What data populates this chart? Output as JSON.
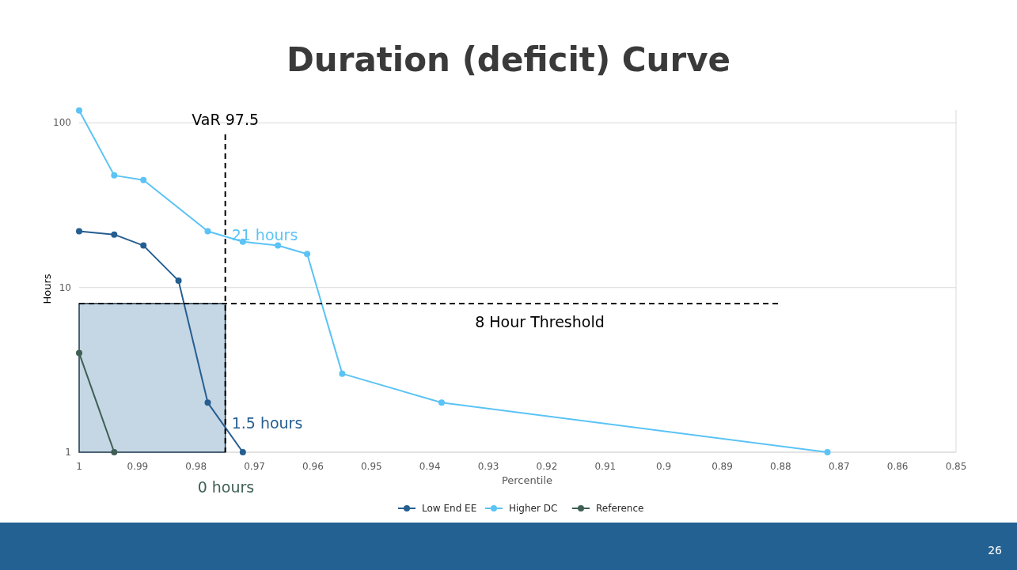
{
  "chart_data": {
    "type": "line",
    "title": "Duration (deficit) Curve",
    "xlabel": "Percentile",
    "ylabel": "Hours",
    "xlim": [
      1,
      0.85
    ],
    "xticks": [
      1,
      0.99,
      0.98,
      0.97,
      0.96,
      0.95,
      0.94,
      0.93,
      0.92,
      0.91,
      0.9,
      0.89,
      0.88,
      0.87,
      0.86,
      0.85
    ],
    "ylim": [
      1,
      120
    ],
    "yticks": [
      1,
      10,
      100
    ],
    "log": "y",
    "grid": "y",
    "marker": "circle",
    "legend": "bottom",
    "series": [
      {
        "name": "Low End EE",
        "color": "#255e91",
        "x": [
          1,
          0.994,
          0.989,
          0.983,
          0.978,
          0.972
        ],
        "values": [
          22,
          21,
          18,
          11,
          2,
          1
        ]
      },
      {
        "name": "Higher DC",
        "color": "#5bc3f5",
        "x": [
          1,
          0.994,
          0.989,
          0.978,
          0.972,
          0.966,
          0.961,
          0.955,
          0.938,
          0.872
        ],
        "values": [
          119,
          48,
          45,
          22,
          19,
          18,
          16,
          3,
          2,
          1
        ]
      },
      {
        "name": "Reference",
        "color": "#3f5f55",
        "x": [
          1,
          0.994
        ],
        "values": [
          4,
          1
        ]
      }
    ],
    "ref_lines": [
      {
        "axis": "x",
        "value": 0.975,
        "label": "VaR 97.5",
        "color": "#000000",
        "line_style": "dashed"
      },
      {
        "axis": "y",
        "value": 8,
        "label": "8 Hour Threshold",
        "color": "#000000",
        "line_style": "dashed"
      }
    ],
    "bands": [
      {
        "axis": "x",
        "from": 1,
        "to": 0.975,
        "color": "#c5d6e4"
      }
    ],
    "annotations": [
      {
        "text": "1.5 hours",
        "x": 0.975,
        "y": 1.5
      },
      {
        "text": "21 hours",
        "x": 0.975,
        "y": 21
      },
      "0 hours",
      "26"
    ]
  }
}
